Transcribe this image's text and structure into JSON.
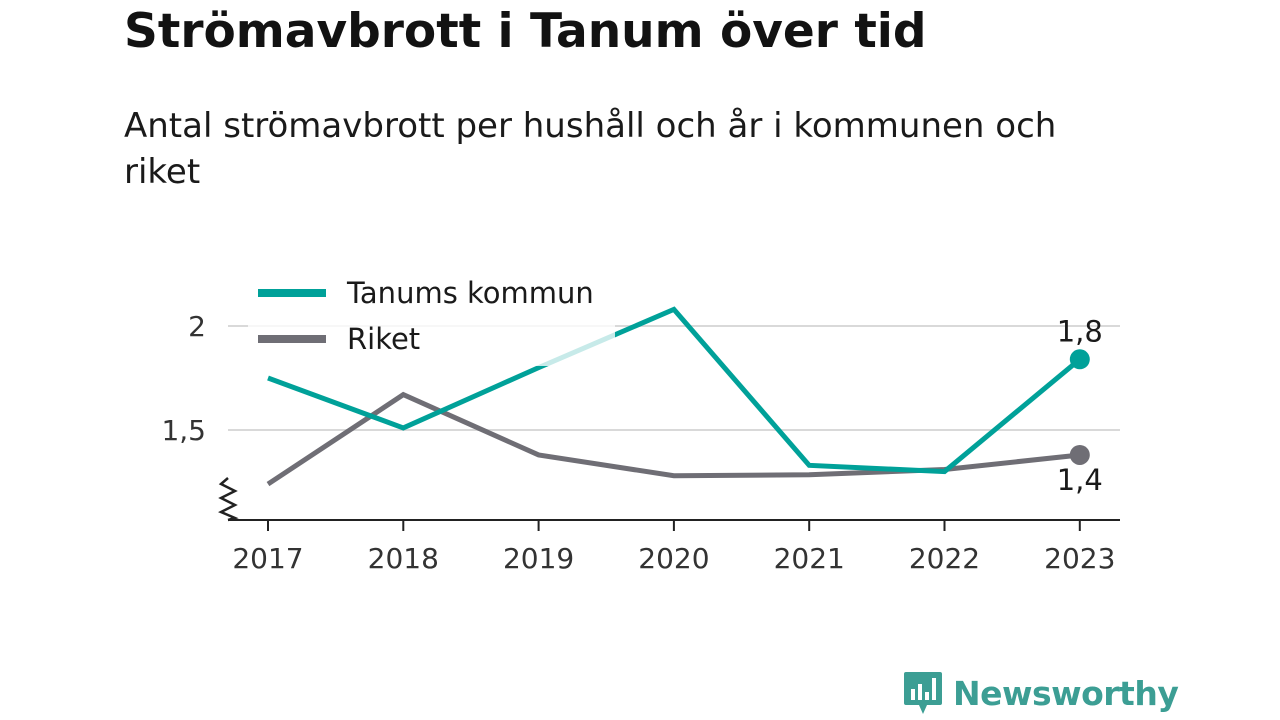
{
  "title": "Strömavbrott i Tanum över tid",
  "subtitle": "Antal strömavbrott per hushåll och år i kommunen och riket",
  "brand": {
    "name": "Newsworthy",
    "logo_icon": "bar-chart-speech-bubble-icon",
    "color": "#3c9e94"
  },
  "chart_data": {
    "type": "line",
    "x": [
      "2017",
      "2018",
      "2019",
      "2020",
      "2021",
      "2022",
      "2023"
    ],
    "series": [
      {
        "name": "Tanums kommun",
        "color": "#00a199",
        "values": [
          1.75,
          1.51,
          1.8,
          2.08,
          1.33,
          1.3,
          1.84
        ],
        "end_label": "1,8"
      },
      {
        "name": "Riket",
        "color": "#6f6e75",
        "values": [
          1.24,
          1.67,
          1.38,
          1.28,
          1.285,
          1.31,
          1.38
        ],
        "end_label": "1,4"
      }
    ],
    "yticks": [
      {
        "value": 1.5,
        "label": "1,5"
      },
      {
        "value": 2,
        "label": "2"
      }
    ],
    "ylim": [
      1.05,
      2.2
    ],
    "y_axis_break": true,
    "grid": true,
    "legend_position": "top-left"
  }
}
